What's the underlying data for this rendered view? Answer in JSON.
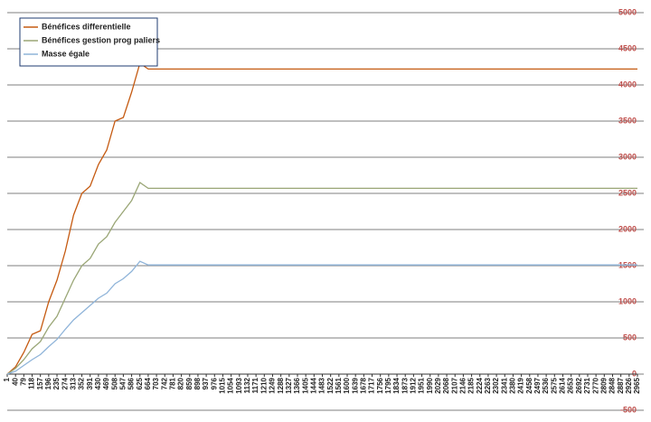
{
  "chart_data": {
    "type": "line",
    "x": [
      1,
      40,
      79,
      118,
      157,
      196,
      235,
      274,
      313,
      352,
      391,
      430,
      469,
      508,
      547,
      586,
      625,
      664,
      2965
    ],
    "series": [
      {
        "name": "Bénéfices differentielle",
        "color": "#c55a11",
        "values": [
          0,
          100,
          300,
          550,
          600,
          1000,
          1300,
          1700,
          2200,
          2500,
          2600,
          2900,
          3100,
          3500,
          3550,
          3900,
          4300,
          4220,
          4220
        ]
      },
      {
        "name": "Bénéfices gestion prog  paliers",
        "color": "#9aa676",
        "values": [
          0,
          80,
          200,
          350,
          450,
          650,
          800,
          1050,
          1300,
          1500,
          1600,
          1800,
          1900,
          2100,
          2250,
          2400,
          2650,
          2570,
          2570
        ]
      },
      {
        "name": "Masse égale",
        "color": "#8fb4d9",
        "values": [
          0,
          40,
          120,
          200,
          270,
          380,
          480,
          620,
          750,
          850,
          950,
          1050,
          1120,
          1250,
          1320,
          1420,
          1560,
          1510,
          1510
        ]
      }
    ],
    "xlim": [
      1,
      2965
    ],
    "xticks": [
      1,
      40,
      79,
      118,
      157,
      196,
      235,
      274,
      313,
      352,
      391,
      430,
      469,
      508,
      547,
      586,
      625,
      664,
      703,
      742,
      781,
      820,
      859,
      898,
      937,
      976,
      1015,
      1054,
      1093,
      1132,
      1171,
      1210,
      1249,
      1288,
      1327,
      1366,
      1405,
      1444,
      1483,
      1522,
      1561,
      1600,
      1639,
      1678,
      1717,
      1756,
      1795,
      1834,
      1873,
      1912,
      1951,
      1990,
      2029,
      2068,
      2107,
      2146,
      2185,
      2224,
      2263,
      2302,
      2341,
      2380,
      2419,
      2458,
      2497,
      2536,
      2575,
      2614,
      2653,
      2692,
      2731,
      2770,
      2809,
      2848,
      2887,
      2926,
      2965
    ],
    "ylim": [
      -500,
      5000
    ],
    "yticks": [
      -500,
      0,
      500,
      1000,
      1500,
      2000,
      2500,
      3000,
      3500,
      4000,
      4500,
      5000
    ],
    "grid": true,
    "legend": "top-left"
  }
}
